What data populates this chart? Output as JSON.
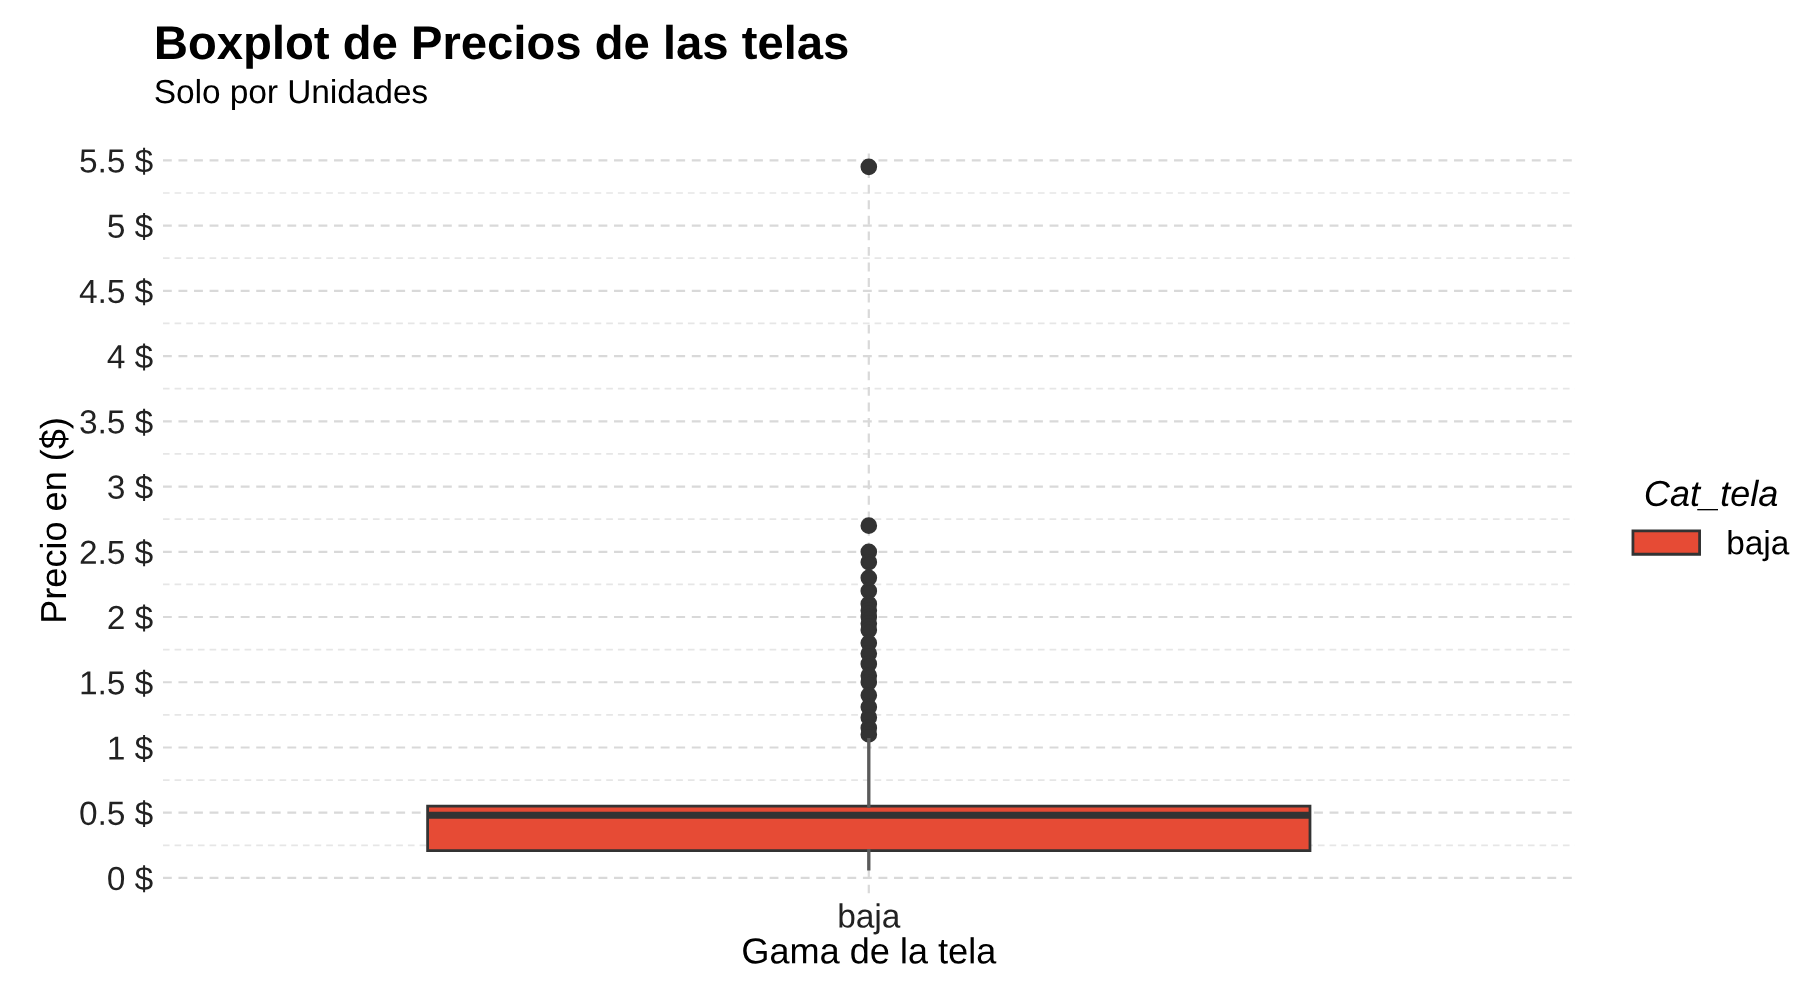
{
  "chart_data": {
    "type": "box",
    "title": "Boxplot de Precios de las telas",
    "subtitle": "Solo por Unidades",
    "xlabel": "Gama de la tela",
    "ylabel": "Precio en ($)",
    "legend_title": "Cat_tela",
    "categories": [
      "baja"
    ],
    "series": [
      {
        "name": "baja",
        "color": "#e64b35",
        "boxes": [
          {
            "low": 0.07,
            "q1": 0.21,
            "median": 0.48,
            "q3": 0.55,
            "high": 1.06,
            "outliers": [
              5.45,
              2.7,
              2.5,
              2.42,
              2.3,
              2.2,
              2.1,
              2.05,
              2.0,
              1.95,
              1.9,
              1.8,
              1.72,
              1.64,
              1.55,
              1.5,
              1.4,
              1.31,
              1.23,
              1.15,
              1.1
            ]
          }
        ]
      }
    ],
    "ylim": [
      -0.12,
      5.6
    ],
    "yticks": [
      {
        "value": 0,
        "label": "0 $"
      },
      {
        "value": 0.5,
        "label": "0.5 $"
      },
      {
        "value": 1,
        "label": "1 $"
      },
      {
        "value": 1.5,
        "label": "1.5 $"
      },
      {
        "value": 2,
        "label": "2 $"
      },
      {
        "value": 2.5,
        "label": "2.5 $"
      },
      {
        "value": 3,
        "label": "3 $"
      },
      {
        "value": 3.5,
        "label": "3.5 $"
      },
      {
        "value": 4,
        "label": "4 $"
      },
      {
        "value": 4.5,
        "label": "4.5 $"
      },
      {
        "value": 5,
        "label": "5 $"
      },
      {
        "value": 5.5,
        "label": "5.5 $"
      }
    ],
    "grid": true,
    "legend": "right"
  }
}
